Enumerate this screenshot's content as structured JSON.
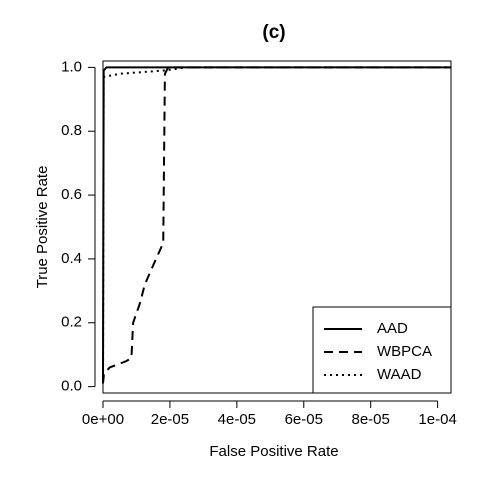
{
  "chart_data": {
    "type": "line",
    "title": "(c)",
    "xlabel": "False Positive Rate",
    "ylabel": "True Positive Rate",
    "xlim": [
      0,
      0.000104
    ],
    "ylim": [
      -0.02,
      1.02
    ],
    "x_ticks": [
      0,
      2e-05,
      4e-05,
      6e-05,
      8e-05,
      0.0001
    ],
    "x_tick_labels": [
      "0e+00",
      "2e-05",
      "4e-05",
      "6e-05",
      "8e-05",
      "1e-04"
    ],
    "y_ticks": [
      0,
      0.2,
      0.4,
      0.6,
      0.8,
      1.0
    ],
    "y_tick_labels": [
      "0.0",
      "0.2",
      "0.4",
      "0.6",
      "0.8",
      "1.0"
    ],
    "grid": false,
    "legend_position": "bottom-right",
    "series": [
      {
        "name": "AAD",
        "line_style": "solid",
        "points": [
          [
            0,
            0.01
          ],
          [
            2e-07,
            0.99
          ],
          [
            1e-06,
            1.0
          ],
          [
            0.000104,
            1.0
          ]
        ]
      },
      {
        "name": "WBPCA",
        "line_style": "dashed",
        "points": [
          [
            0,
            0.01
          ],
          [
            3e-07,
            0.04
          ],
          [
            2e-06,
            0.06
          ],
          [
            7e-06,
            0.08
          ],
          [
            8.5e-06,
            0.09
          ],
          [
            9e-06,
            0.2
          ],
          [
            1.1e-05,
            0.26
          ],
          [
            1.25e-05,
            0.32
          ],
          [
            1.5e-05,
            0.38
          ],
          [
            1.8e-05,
            0.45
          ],
          [
            1.85e-05,
            0.98
          ],
          [
            1.95e-05,
            1.0
          ],
          [
            0.000104,
            1.0
          ]
        ]
      },
      {
        "name": "WAAD",
        "line_style": "dotted",
        "points": [
          [
            0,
            0.01
          ],
          [
            2e-07,
            0.97
          ],
          [
            5e-06,
            0.98
          ],
          [
            1.8e-05,
            0.99
          ],
          [
            2.5e-05,
            1.0
          ],
          [
            0.000104,
            1.0
          ]
        ]
      }
    ]
  }
}
